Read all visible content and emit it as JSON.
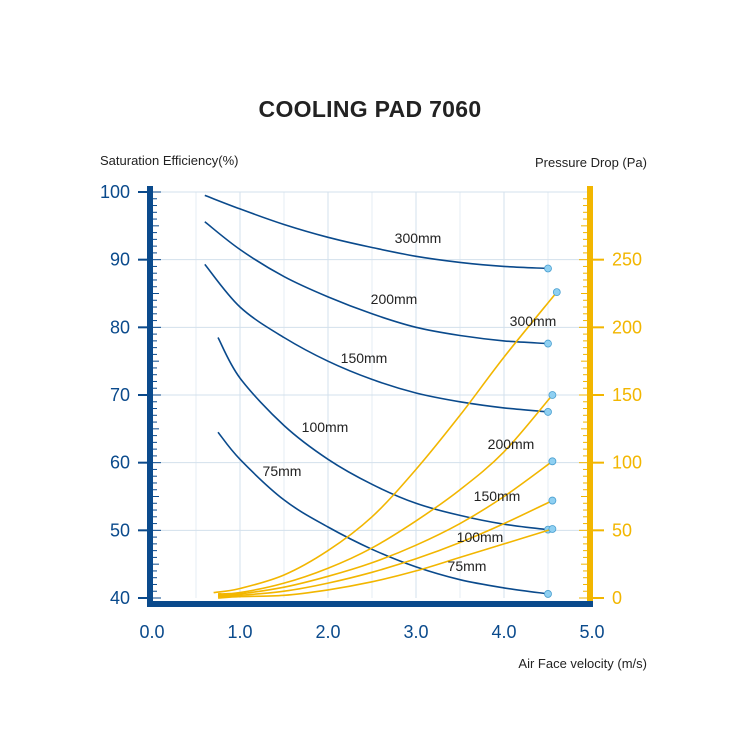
{
  "chart_data": {
    "type": "line",
    "title": "COOLING PAD 7060",
    "x_axis": {
      "label": "Air Face velocity (m/s)",
      "range": [
        0,
        5
      ],
      "ticks": [
        "0.0",
        "1.0",
        "2.0",
        "3.0",
        "4.0",
        "5.0"
      ]
    },
    "y_left": {
      "label": "Saturation Efficiency(%)",
      "range": [
        40,
        100
      ],
      "ticks": [
        "40",
        "50",
        "60",
        "70",
        "80",
        "90",
        "100"
      ]
    },
    "y_right": {
      "label": "Pressure Drop (Pa)",
      "range": [
        0,
        300
      ],
      "ticks": [
        "0",
        "50",
        "100",
        "150",
        "200",
        "250"
      ]
    },
    "grid": true,
    "colors": {
      "efficiency": "#0a4a8c",
      "pressure": "#f2b600",
      "grid": "#d3e0ec",
      "marker": "#8fd0f2"
    },
    "efficiency_series": [
      {
        "name": "300mm",
        "x": [
          0.6,
          1.0,
          1.5,
          2.0,
          2.5,
          3.0,
          3.5,
          4.0,
          4.5
        ],
        "y": [
          99.5,
          97.5,
          95.2,
          93.3,
          91.8,
          90.5,
          89.6,
          89.0,
          88.7
        ]
      },
      {
        "name": "200mm",
        "x": [
          0.6,
          1.0,
          1.5,
          2.0,
          2.5,
          3.0,
          3.5,
          4.0,
          4.5
        ],
        "y": [
          95.6,
          91.5,
          87.5,
          84.5,
          82.0,
          80.0,
          78.8,
          78.0,
          77.6
        ]
      },
      {
        "name": "150mm",
        "x": [
          0.6,
          1.0,
          1.5,
          2.0,
          2.5,
          3.0,
          3.5,
          4.0,
          4.5
        ],
        "y": [
          89.3,
          83.0,
          78.5,
          75.0,
          72.3,
          70.3,
          69.0,
          68.1,
          67.5
        ]
      },
      {
        "name": "100mm",
        "x": [
          0.75,
          1.0,
          1.5,
          2.0,
          2.5,
          3.0,
          3.5,
          4.0,
          4.5
        ],
        "y": [
          78.5,
          72.5,
          65.5,
          60.5,
          56.8,
          54.0,
          52.2,
          50.9,
          50.1
        ]
      },
      {
        "name": "75mm",
        "x": [
          0.75,
          1.0,
          1.5,
          2.0,
          2.5,
          3.0,
          3.5,
          4.0,
          4.5
        ],
        "y": [
          64.5,
          60.5,
          54.5,
          50.5,
          47.2,
          44.6,
          42.7,
          41.5,
          40.6
        ]
      }
    ],
    "pressure_series": [
      {
        "name": "300mm",
        "x": [
          0.7,
          1.0,
          1.5,
          2.0,
          2.5,
          3.0,
          3.5,
          4.0,
          4.6
        ],
        "y": [
          4,
          7,
          17,
          35,
          60,
          95,
          135,
          178,
          226
        ]
      },
      {
        "name": "200mm",
        "x": [
          0.75,
          1.0,
          1.5,
          2.0,
          2.5,
          3.0,
          3.5,
          4.0,
          4.55
        ],
        "y": [
          3,
          4,
          11,
          22,
          37,
          57,
          80,
          108,
          150
        ]
      },
      {
        "name": "150mm",
        "x": [
          0.75,
          1.0,
          1.5,
          2.0,
          2.5,
          3.0,
          3.5,
          4.0,
          4.55
        ],
        "y": [
          2,
          3,
          8,
          16,
          26,
          39,
          55,
          75,
          101
        ]
      },
      {
        "name": "100mm",
        "x": [
          0.75,
          1.0,
          1.5,
          2.0,
          2.5,
          3.0,
          3.5,
          4.0,
          4.55
        ],
        "y": [
          1,
          2,
          5,
          11,
          19,
          29,
          41,
          55,
          72
        ]
      },
      {
        "name": "75mm",
        "x": [
          0.75,
          1.0,
          1.5,
          2.0,
          2.5,
          3.0,
          3.5,
          4.0,
          4.55
        ],
        "y": [
          0,
          1,
          2,
          6,
          12,
          20,
          30,
          40,
          51
        ]
      }
    ]
  }
}
